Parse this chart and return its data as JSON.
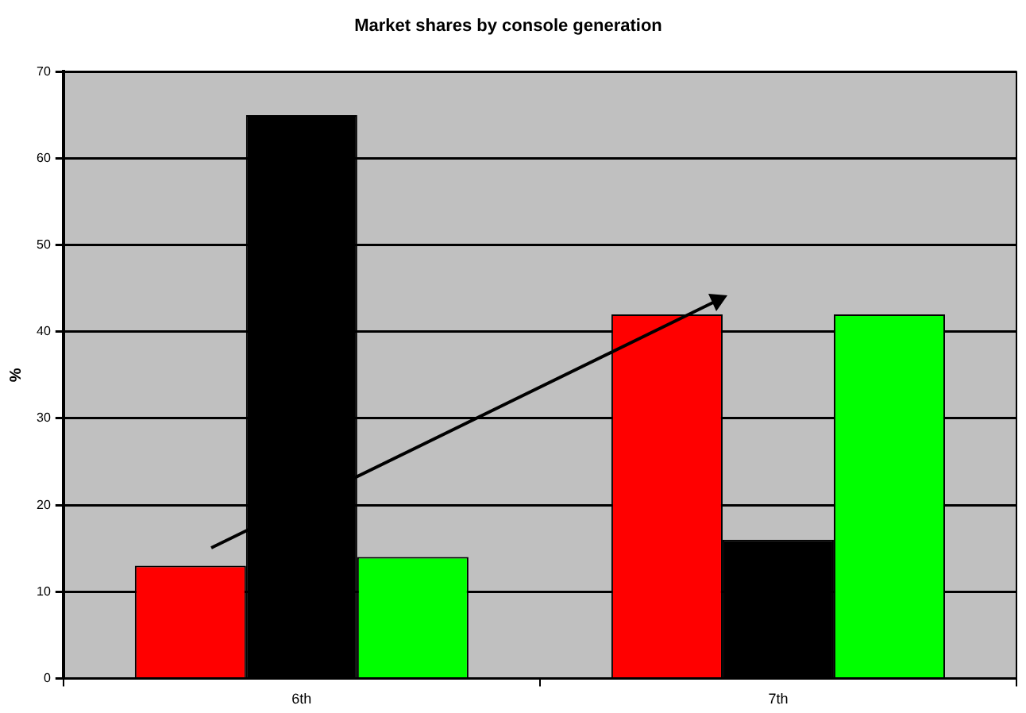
{
  "chart_data": {
    "type": "bar",
    "title": "Market shares by console generation",
    "ylabel": "%",
    "categories": [
      "6th",
      "7th"
    ],
    "series": [
      {
        "color": "#ff0000",
        "values": [
          13,
          42
        ]
      },
      {
        "color": "#000000",
        "values": [
          65,
          16
        ]
      },
      {
        "color": "#00ff00",
        "values": [
          14,
          42
        ]
      }
    ],
    "ylim": [
      0,
      70
    ],
    "yticks": [
      0,
      10,
      20,
      30,
      40,
      50,
      60,
      70
    ],
    "grid": "y",
    "legend": false
  }
}
